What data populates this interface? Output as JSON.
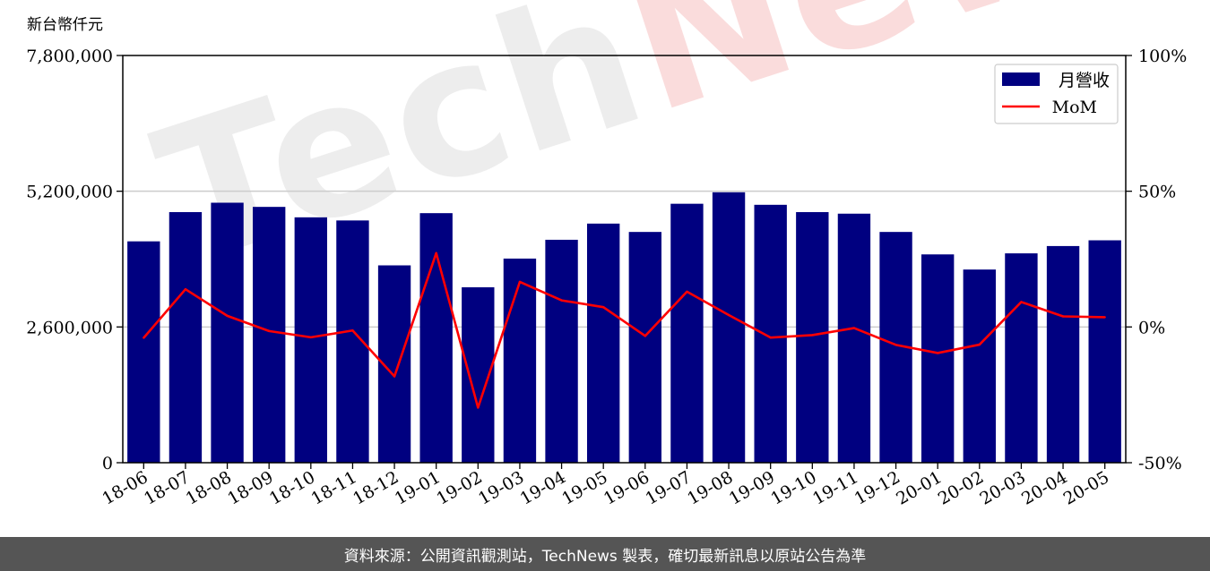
{
  "chart_data": {
    "type": "bar",
    "ylabel": "新台幣仟元",
    "categories": [
      "18-06",
      "18-07",
      "18-08",
      "18-09",
      "18-10",
      "18-11",
      "18-12",
      "19-01",
      "19-02",
      "19-03",
      "19-04",
      "19-05",
      "19-06",
      "19-07",
      "19-08",
      "19-09",
      "19-10",
      "19-11",
      "19-12",
      "20-01",
      "20-02",
      "20-03",
      "20-04",
      "20-05"
    ],
    "series": [
      {
        "name": "月營收",
        "axis": "left",
        "type": "bar",
        "color": "#000080",
        "values": [
          4240000,
          4800000,
          4980000,
          4900000,
          4700000,
          4640000,
          3780000,
          4780000,
          3360000,
          3910000,
          4270000,
          4580000,
          4420000,
          4960000,
          5180000,
          4940000,
          4800000,
          4770000,
          4420000,
          3990000,
          3700000,
          4010000,
          4150000,
          4260000
        ]
      },
      {
        "name": "MoM",
        "axis": "right",
        "type": "line",
        "color": "#ff0000",
        "unit": "%",
        "values": [
          -4.0,
          13.9,
          4.1,
          -1.5,
          -3.8,
          -1.3,
          -18.2,
          27.2,
          -29.7,
          16.6,
          9.8,
          7.3,
          -3.3,
          13.0,
          4.4,
          -3.9,
          -3.0,
          -0.4,
          -6.6,
          -9.6,
          -6.5,
          9.2,
          3.9,
          3.6
        ]
      }
    ],
    "ylim": [
      0,
      7800000
    ],
    "yticks": [
      "0",
      "2,600,000",
      "5,200,000",
      "7,800,000"
    ],
    "y2lim": [
      -50,
      100
    ],
    "y2ticks": [
      "-50%",
      "0%",
      "50%",
      "100%"
    ],
    "grid": "horizontal",
    "legend": "top-right"
  },
  "watermark": {
    "part1": "Tech",
    "part2": "News"
  },
  "footer": {
    "text": "資料來源：公開資訊觀測站，TechNews 製表，確切最新訊息以原站公告為準"
  }
}
